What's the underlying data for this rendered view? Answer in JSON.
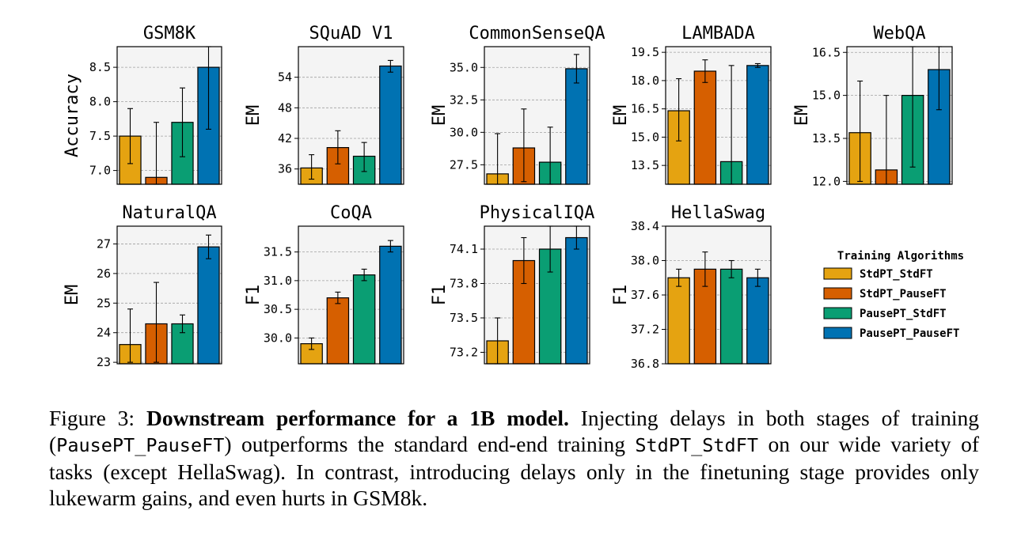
{
  "legend": {
    "title": "Training Algorithms",
    "entries": [
      "StdPT_StdFT",
      "StdPT_PauseFT",
      "PausePT_StdFT",
      "PausePT_PauseFT"
    ]
  },
  "colors": {
    "StdPT_StdFT": "#E5A311",
    "StdPT_PauseFT": "#D65F00",
    "PausePT_StdFT": "#0A9E73",
    "PausePT_PauseFT": "#0072B2",
    "panel_bg": "#f4f4f4",
    "grid": "#a0a0a0"
  },
  "caption": {
    "prefix": "Figure 3: ",
    "bold": "Downstream performance for a 1B model.",
    "t1": " Injecting delays in both stages of training (",
    "m1": "PausePT_PauseFT",
    "t2": ") outperforms the standard end-end training ",
    "m2": "StdPT_StdFT",
    "t3": " on our wide variety of tasks (except HellaSwag). In contrast, introducing delays only in the finetuning stage provides only lukewarm gains, and even hurts in GSM8k."
  },
  "chart_data": [
    {
      "type": "bar",
      "title": "GSM8K",
      "ylabel": "Accuracy",
      "ylim": [
        6.8,
        8.8
      ],
      "yticks": [
        7.0,
        7.5,
        8.0,
        8.5
      ],
      "ytick_labels": [
        "7.0",
        "7.5",
        "8.0",
        "8.5"
      ],
      "grid": true,
      "series": [
        {
          "name": "StdPT_StdFT",
          "value": 7.5,
          "err": [
            7.1,
            7.9
          ]
        },
        {
          "name": "StdPT_PauseFT",
          "value": 6.9,
          "err": [
            6.8,
            7.7
          ]
        },
        {
          "name": "PausePT_StdFT",
          "value": 7.7,
          "err": [
            7.2,
            8.2
          ]
        },
        {
          "name": "PausePT_PauseFT",
          "value": 8.5,
          "err": [
            7.6,
            8.8
          ]
        }
      ]
    },
    {
      "type": "bar",
      "title": "SQuAD V1",
      "ylabel": "EM",
      "ylim": [
        33,
        60
      ],
      "yticks": [
        36,
        42,
        48,
        54
      ],
      "ytick_labels": [
        "36",
        "42",
        "48",
        "54"
      ],
      "grid": true,
      "series": [
        {
          "name": "StdPT_StdFT",
          "value": 36.2,
          "err": [
            34.0,
            38.8
          ]
        },
        {
          "name": "StdPT_PauseFT",
          "value": 40.2,
          "err": [
            37.0,
            43.5
          ]
        },
        {
          "name": "PausePT_StdFT",
          "value": 38.5,
          "err": [
            35.5,
            41.2
          ]
        },
        {
          "name": "PausePT_PauseFT",
          "value": 56.2,
          "err": [
            55.0,
            57.3
          ]
        }
      ]
    },
    {
      "type": "bar",
      "title": "CommonSenseQA",
      "ylabel": "EM",
      "ylim": [
        26,
        36.6
      ],
      "yticks": [
        27.5,
        30.0,
        32.5,
        35.0
      ],
      "ytick_labels": [
        "27.5",
        "30.0",
        "32.5",
        "35.0"
      ],
      "grid": true,
      "series": [
        {
          "name": "StdPT_StdFT",
          "value": 26.8,
          "err": [
            26.0,
            29.9
          ]
        },
        {
          "name": "StdPT_PauseFT",
          "value": 28.8,
          "err": [
            26.2,
            31.8
          ]
        },
        {
          "name": "PausePT_StdFT",
          "value": 27.7,
          "err": [
            26.0,
            30.4
          ]
        },
        {
          "name": "PausePT_PauseFT",
          "value": 34.9,
          "err": [
            33.8,
            36.0
          ]
        }
      ]
    },
    {
      "type": "bar",
      "title": "LAMBADA",
      "ylabel": "EM",
      "ylim": [
        12.5,
        19.8
      ],
      "yticks": [
        13.5,
        15.0,
        16.5,
        18.0,
        19.5
      ],
      "ytick_labels": [
        "13.5",
        "15.0",
        "16.5",
        "18.0",
        "19.5"
      ],
      "grid": true,
      "series": [
        {
          "name": "StdPT_StdFT",
          "value": 16.4,
          "err": [
            14.8,
            18.1
          ]
        },
        {
          "name": "StdPT_PauseFT",
          "value": 18.5,
          "err": [
            17.9,
            19.1
          ]
        },
        {
          "name": "PausePT_StdFT",
          "value": 13.7,
          "err": [
            12.5,
            18.8
          ]
        },
        {
          "name": "PausePT_PauseFT",
          "value": 18.8,
          "err": [
            18.7,
            18.9
          ]
        }
      ]
    },
    {
      "type": "bar",
      "title": "WebQA",
      "ylabel": "EM",
      "ylim": [
        11.9,
        16.7
      ],
      "yticks": [
        12.0,
        13.5,
        15.0,
        16.5
      ],
      "ytick_labels": [
        "12.0",
        "13.5",
        "15.0",
        "16.5"
      ],
      "grid": true,
      "series": [
        {
          "name": "StdPT_StdFT",
          "value": 13.7,
          "err": [
            12.0,
            15.5
          ]
        },
        {
          "name": "StdPT_PauseFT",
          "value": 12.4,
          "err": [
            11.9,
            15.0
          ]
        },
        {
          "name": "PausePT_StdFT",
          "value": 15.0,
          "err": [
            12.5,
            16.7
          ]
        },
        {
          "name": "PausePT_PauseFT",
          "value": 15.9,
          "err": [
            14.5,
            16.7
          ]
        }
      ]
    },
    {
      "type": "bar",
      "title": "NaturalQA",
      "ylabel": "EM",
      "ylim": [
        22.95,
        27.6
      ],
      "yticks": [
        23,
        24,
        25,
        26,
        27
      ],
      "ytick_labels": [
        "23",
        "24",
        "25",
        "26",
        "27"
      ],
      "grid": true,
      "series": [
        {
          "name": "StdPT_StdFT",
          "value": 23.6,
          "err": [
            23.0,
            24.8
          ]
        },
        {
          "name": "StdPT_PauseFT",
          "value": 24.3,
          "err": [
            23.0,
            25.7
          ]
        },
        {
          "name": "PausePT_StdFT",
          "value": 24.3,
          "err": [
            24.0,
            24.6
          ]
        },
        {
          "name": "PausePT_PauseFT",
          "value": 26.9,
          "err": [
            26.5,
            27.3
          ]
        }
      ]
    },
    {
      "type": "bar",
      "title": "CoQA",
      "ylabel": "F1",
      "ylim": [
        29.55,
        31.95
      ],
      "yticks": [
        30.0,
        30.5,
        31.0,
        31.5
      ],
      "ytick_labels": [
        "30.0",
        "30.5",
        "31.0",
        "31.5"
      ],
      "grid": true,
      "series": [
        {
          "name": "StdPT_StdFT",
          "value": 29.9,
          "err": [
            29.8,
            30.0
          ]
        },
        {
          "name": "StdPT_PauseFT",
          "value": 30.7,
          "err": [
            30.6,
            30.8
          ]
        },
        {
          "name": "PausePT_StdFT",
          "value": 31.1,
          "err": [
            31.0,
            31.2
          ]
        },
        {
          "name": "PausePT_PauseFT",
          "value": 31.6,
          "err": [
            31.5,
            31.7
          ]
        }
      ]
    },
    {
      "type": "bar",
      "title": "PhysicalIQA",
      "ylabel": "F1",
      "ylim": [
        73.1,
        74.3
      ],
      "yticks": [
        73.2,
        73.5,
        73.8,
        74.1
      ],
      "ytick_labels": [
        "73.2",
        "73.5",
        "73.8",
        "74.1"
      ],
      "grid": true,
      "series": [
        {
          "name": "StdPT_StdFT",
          "value": 73.3,
          "err": [
            73.1,
            73.5
          ]
        },
        {
          "name": "StdPT_PauseFT",
          "value": 74.0,
          "err": [
            73.8,
            74.2
          ]
        },
        {
          "name": "PausePT_StdFT",
          "value": 74.1,
          "err": [
            73.9,
            74.3
          ]
        },
        {
          "name": "PausePT_PauseFT",
          "value": 74.2,
          "err": [
            74.1,
            74.3
          ]
        }
      ]
    },
    {
      "type": "bar",
      "title": "HellaSwag",
      "ylabel": "F1",
      "ylim": [
        36.8,
        38.4
      ],
      "yticks": [
        36.8,
        37.2,
        37.6,
        38.0,
        38.4
      ],
      "ytick_labels": [
        "36.8",
        "37.2",
        "37.6",
        "38.0",
        "38.4"
      ],
      "grid": true,
      "series": [
        {
          "name": "StdPT_StdFT",
          "value": 37.8,
          "err": [
            37.7,
            37.9
          ]
        },
        {
          "name": "StdPT_PauseFT",
          "value": 37.9,
          "err": [
            37.7,
            38.1
          ]
        },
        {
          "name": "PausePT_StdFT",
          "value": 37.9,
          "err": [
            37.8,
            38.0
          ]
        },
        {
          "name": "PausePT_PauseFT",
          "value": 37.8,
          "err": [
            37.7,
            37.9
          ]
        }
      ]
    }
  ]
}
